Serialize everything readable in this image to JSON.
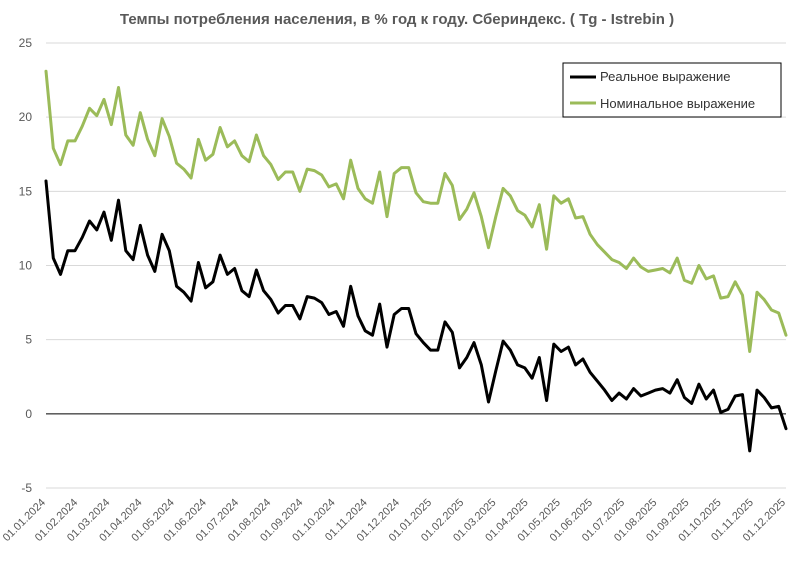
{
  "chart_data": {
    "type": "line",
    "title": "Темпы потребления населения, в % год к году. Сбериндекс. ( Tg - Istrebin )",
    "xlabel": "",
    "ylabel": "",
    "ylim": [
      -5,
      25
    ],
    "yticks": [
      -5,
      0,
      5,
      10,
      15,
      20,
      25
    ],
    "grid": "horizontal",
    "legend_position": "top-right",
    "xtick_labels": [
      "01.01.2024",
      "01.02.2024",
      "01.03.2024",
      "01.04.2024",
      "01.05.2024",
      "01.06.2024",
      "01.07.2024",
      "01.08.2024",
      "01.09.2024",
      "01.10.2024",
      "01.11.2024",
      "01.12.2024",
      "01.01.2025",
      "01.02.2025",
      "01.03.2025",
      "01.04.2025",
      "01.05.2025",
      "01.06.2025",
      "01.07.2025",
      "01.08.2025",
      "01.09.2025",
      "01.10.2025",
      "01.11.2025",
      "01.12.2025"
    ],
    "series": [
      {
        "name": "Реальное выражение",
        "color": "#000000",
        "values": [
          15.7,
          10.5,
          9.4,
          11.0,
          11.0,
          11.9,
          13.0,
          12.4,
          13.6,
          11.7,
          14.4,
          11.0,
          10.4,
          12.7,
          10.7,
          9.6,
          12.1,
          11.0,
          8.6,
          8.2,
          7.6,
          10.2,
          8.5,
          8.9,
          10.7,
          9.4,
          9.8,
          8.3,
          7.9,
          9.7,
          8.3,
          7.7,
          6.8,
          7.3,
          7.3,
          6.4,
          7.9,
          7.8,
          7.5,
          6.7,
          6.9,
          5.9,
          8.6,
          6.6,
          5.6,
          5.3,
          7.4,
          4.5,
          6.7,
          7.1,
          7.1,
          5.4,
          4.8,
          4.3,
          4.3,
          6.2,
          5.5,
          3.1,
          3.8,
          4.8,
          3.3,
          0.8,
          2.9,
          4.9,
          4.3,
          3.3,
          3.1,
          2.4,
          3.8,
          0.9,
          4.7,
          4.2,
          4.5,
          3.3,
          3.7,
          2.8,
          2.2,
          1.6,
          0.9,
          1.4,
          1.0,
          1.7,
          1.2,
          1.4,
          1.6,
          1.7,
          1.4,
          2.3,
          1.1,
          0.7,
          2.0,
          1.0,
          1.6,
          0.1,
          0.3,
          1.2,
          1.3,
          -2.5,
          1.6,
          1.1,
          0.4,
          0.5,
          -1.0
        ]
      },
      {
        "name": "Номинальное выражение",
        "color": "#9BBB59",
        "values": [
          23.1,
          17.9,
          16.8,
          18.4,
          18.4,
          19.4,
          20.6,
          20.1,
          21.2,
          19.5,
          22.0,
          18.8,
          18.1,
          20.3,
          18.5,
          17.4,
          19.9,
          18.7,
          16.9,
          16.5,
          15.9,
          18.5,
          17.1,
          17.5,
          19.3,
          18.0,
          18.4,
          17.4,
          17.0,
          18.8,
          17.4,
          16.8,
          15.8,
          16.3,
          16.3,
          15.0,
          16.5,
          16.4,
          16.1,
          15.3,
          15.5,
          14.5,
          17.1,
          15.2,
          14.5,
          14.2,
          16.3,
          13.3,
          16.2,
          16.6,
          16.6,
          14.9,
          14.3,
          14.2,
          14.2,
          16.2,
          15.4,
          13.1,
          13.8,
          14.9,
          13.3,
          11.2,
          13.3,
          15.2,
          14.7,
          13.7,
          13.4,
          12.6,
          14.1,
          11.1,
          14.7,
          14.2,
          14.5,
          13.2,
          13.3,
          12.1,
          11.4,
          10.9,
          10.4,
          10.2,
          9.8,
          10.5,
          9.9,
          9.6,
          9.7,
          9.8,
          9.5,
          10.5,
          9.0,
          8.8,
          10.0,
          9.1,
          9.3,
          7.8,
          7.9,
          8.9,
          8.0,
          4.2,
          8.2,
          7.7,
          7.0,
          6.8,
          5.3
        ]
      }
    ]
  }
}
